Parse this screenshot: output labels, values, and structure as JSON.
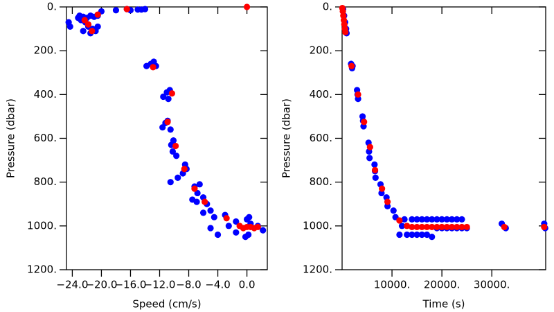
{
  "chart_data": [
    {
      "type": "scatter",
      "x_label": "Speed (cm/s)",
      "y_label": "Pressure (dbar)",
      "xlim": [
        -24.8,
        2.8
      ],
      "ylim": [
        1200,
        0
      ],
      "xticks": [
        {
          "value": -24,
          "label": "−24.0"
        },
        {
          "value": -20,
          "label": "−20.0"
        },
        {
          "value": -16,
          "label": "−16.0"
        },
        {
          "value": -12,
          "label": "−12.0"
        },
        {
          "value": -8,
          "label": "−8.0"
        },
        {
          "value": -4,
          "label": "−4.0"
        },
        {
          "value": 0,
          "label": "0.0"
        }
      ],
      "yticks": [
        {
          "value": 0,
          "label": "0."
        },
        {
          "value": 200,
          "label": "200."
        },
        {
          "value": 400,
          "label": "400."
        },
        {
          "value": 600,
          "label": "600."
        },
        {
          "value": 800,
          "label": "800."
        },
        {
          "value": 1000,
          "label": "1000."
        },
        {
          "value": 1200,
          "label": "1200."
        }
      ],
      "series": [
        {
          "color": "#0000ff",
          "x": [
            -24.5,
            -24.3,
            -23,
            -22.5,
            -22,
            -21.5,
            -21,
            -20.5,
            -22.8,
            -22.2,
            -21.8,
            -21.2,
            -20.8,
            -20.5,
            -21.5,
            -22.5,
            -23.2,
            -20,
            -18,
            -16.5,
            -16,
            -15,
            -14.5,
            -14,
            -13.8,
            -13.2,
            -12.8,
            -12.5,
            -11.5,
            -11,
            -10.6,
            -10.8,
            -11.2,
            -10.9,
            -10.5,
            -11.6,
            -10.4,
            -10.2,
            -9.7,
            -10.1,
            -8.5,
            -8.8,
            -8.3,
            -10.5,
            -9.5,
            -7.2,
            -6.5,
            -6.8,
            -7.5,
            -6.9,
            -6,
            -5.5,
            -5,
            -4.5,
            -3,
            -2.5,
            -1.5,
            0.5,
            1.5,
            2.2,
            -4,
            -0.2,
            0.2,
            -1.5,
            -5,
            -6,
            0,
            0.3
          ],
          "values": [
            70,
            90,
            40,
            45,
            50,
            40,
            45,
            40,
            60,
            70,
            90,
            100,
            110,
            90,
            120,
            110,
            50,
            20,
            15,
            10,
            15,
            12,
            12,
            10,
            270,
            260,
            250,
            270,
            410,
            390,
            380,
            420,
            530,
            520,
            560,
            550,
            630,
            660,
            680,
            610,
            720,
            760,
            740,
            800,
            780,
            820,
            810,
            850,
            880,
            890,
            870,
            900,
            930,
            960,
            950,
            1000,
            980,
            990,
            1000,
            1020,
            1040,
            1050,
            1040,
            1030,
            1010,
            940,
            970,
            960
          ]
        },
        {
          "color": "#ff0000",
          "x": [
            -22.3,
            -21.8,
            -21.3,
            -20.5,
            -16.5,
            0,
            -12.9,
            -10.3,
            -10.9,
            -9.8,
            -8.6,
            -7.2,
            -5.8,
            -2.8,
            -1,
            0,
            0.5,
            1,
            -0.5,
            1.5
          ],
          "values": [
            60,
            80,
            110,
            35,
            10,
            0,
            275,
            395,
            525,
            635,
            740,
            830,
            890,
            965,
            1000,
            1005,
            1005,
            1010,
            1010,
            1005
          ]
        }
      ]
    },
    {
      "type": "scatter",
      "x_label": "Time (s)",
      "y_label": "Pressure (dbar)",
      "xlim": [
        0,
        40800
      ],
      "ylim": [
        1200,
        0
      ],
      "xticks": [
        {
          "value": 10000,
          "label": "10000."
        },
        {
          "value": 20000,
          "label": "20000."
        },
        {
          "value": 30000,
          "label": "30000."
        }
      ],
      "yticks": [
        {
          "value": 0,
          "label": "0."
        },
        {
          "value": 200,
          "label": "200."
        },
        {
          "value": 400,
          "label": "400."
        },
        {
          "value": 600,
          "label": "600."
        },
        {
          "value": 800,
          "label": "800."
        },
        {
          "value": 1000,
          "label": "1000."
        },
        {
          "value": 1200,
          "label": "1200."
        }
      ],
      "series": [
        {
          "color": "#0000ff",
          "x": [
            200,
            400,
            600,
            800,
            900,
            1800,
            2000,
            2100,
            3000,
            3200,
            3100,
            4100,
            4300,
            4200,
            5300,
            5500,
            5400,
            6500,
            6700,
            6600,
            7700,
            7900,
            8900,
            9100,
            10300,
            10700,
            11500,
            12000,
            12500,
            13000,
            14000,
            14000,
            15000,
            15000,
            16000,
            16000,
            17000,
            17000,
            18000,
            18000,
            19000,
            19000,
            20000,
            20000,
            21000,
            21000,
            22000,
            22000,
            23000,
            23000,
            24000,
            24000,
            25000,
            32000,
            32800,
            40500,
            40700
          ],
          "values": [
            10,
            40,
            70,
            100,
            120,
            260,
            280,
            270,
            380,
            420,
            400,
            500,
            545,
            520,
            620,
            690,
            660,
            720,
            780,
            750,
            810,
            850,
            870,
            910,
            930,
            960,
            1040,
            1000,
            970,
            1040,
            970,
            1040,
            970,
            1040,
            970,
            1040,
            970,
            1040,
            970,
            1050,
            970,
            1010,
            970,
            1010,
            970,
            1010,
            970,
            1010,
            970,
            1010,
            970,
            1010,
            1010,
            990,
            1010,
            990,
            1010
          ]
        },
        {
          "color": "#ff0000",
          "x": [
            50,
            150,
            250,
            350,
            450,
            550,
            650,
            1900,
            3200,
            4400,
            5600,
            6600,
            8000,
            9100,
            11500,
            13000,
            14000,
            15000,
            16000,
            17000,
            18000,
            19000,
            20000,
            21000,
            22000,
            23000,
            24000,
            25000,
            32500,
            40500
          ],
          "values": [
            5,
            20,
            40,
            60,
            80,
            100,
            115,
            270,
            400,
            525,
            640,
            745,
            830,
            890,
            975,
            1000,
            1005,
            1005,
            1005,
            1005,
            1005,
            1005,
            1005,
            1005,
            1005,
            1005,
            1005,
            1005,
            1005,
            1005
          ]
        }
      ]
    }
  ]
}
